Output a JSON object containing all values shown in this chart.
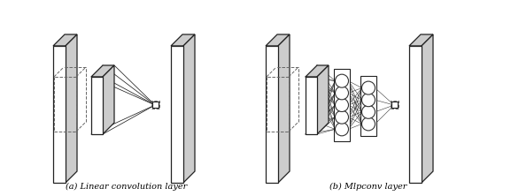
{
  "fig_width": 5.77,
  "fig_height": 2.22,
  "dpi": 100,
  "bg_color": "#ffffff",
  "label_a": "(a) Linear convolution layer",
  "label_b": "(b) Mlpconv layer",
  "label_fontsize": 7.0,
  "gray_face": "#cccccc",
  "white_face": "#ffffff",
  "dark_line": "#222222",
  "dashed_color": "#666666",
  "node_edge": "#333333",
  "lw_slab": 0.9,
  "lw_conn": 0.5,
  "lw_dash": 0.7
}
